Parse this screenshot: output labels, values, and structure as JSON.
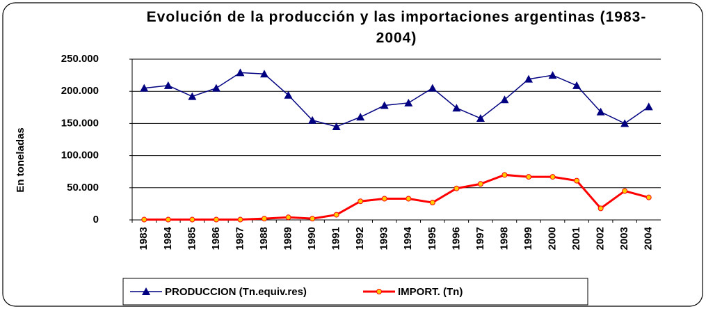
{
  "chart_data": {
    "type": "line",
    "title": "Evolución de la producción y las importaciones argentinas (1983-2004)",
    "ylabel": "En toneladas",
    "categories": [
      "1983",
      "1984",
      "1985",
      "1986",
      "1987",
      "1988",
      "1989",
      "1990",
      "1991",
      "1992",
      "1993",
      "1994",
      "1995",
      "1996",
      "1997",
      "1998",
      "1999",
      "2000",
      "2001",
      "2002",
      "2003",
      "2004"
    ],
    "series": [
      {
        "name": "PRODUCCION (Tn.equiv.res)",
        "color": "#000080",
        "marker": "triangle",
        "values": [
          205000,
          209000,
          192000,
          205000,
          229000,
          227000,
          194000,
          155000,
          145000,
          160000,
          178000,
          182000,
          205000,
          174000,
          158000,
          187000,
          219000,
          225000,
          209000,
          168000,
          150000,
          176000
        ]
      },
      {
        "name": "IMPORT. (Tn)",
        "color": "#ff0000",
        "marker": "circle",
        "values": [
          500,
          500,
          500,
          500,
          500,
          2000,
          4000,
          2000,
          8000,
          29000,
          33000,
          33000,
          27000,
          49000,
          56000,
          70000,
          67000,
          67000,
          61000,
          18000,
          45000,
          35000
        ]
      }
    ],
    "ylim": [
      0,
      250000
    ],
    "yticks": [
      0,
      {
        "value": 50000,
        "label": "50.000"
      },
      {
        "value": 100000,
        "label": "100.000"
      },
      {
        "value": 150000,
        "label": "150.000"
      },
      {
        "value": 200000,
        "label": "200.000"
      },
      {
        "value": 250000,
        "label": "250.000"
      }
    ],
    "grid": true,
    "legend": "bottom"
  }
}
